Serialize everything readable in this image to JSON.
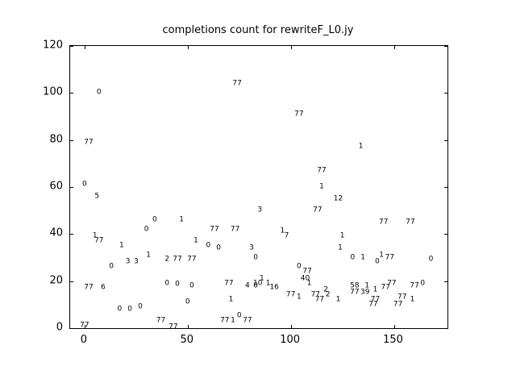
{
  "title": "completions count for rewriteF_L0.jy",
  "chart_data": {
    "type": "scatter",
    "title": "completions count for rewriteF_L0.jy",
    "xlabel": "",
    "ylabel": "",
    "xlim": [
      -7,
      176
    ],
    "ylim": [
      0,
      120
    ],
    "x_ticks": [
      0,
      50,
      100,
      150
    ],
    "y_ticks": [
      0,
      20,
      40,
      60,
      80,
      100,
      120
    ],
    "grid": false,
    "legend": "none",
    "marker_style": "text-label",
    "points": [
      {
        "x": 0,
        "y": 61,
        "t": "0"
      },
      {
        "x": 2,
        "y": 79,
        "t": "77"
      },
      {
        "x": 7,
        "y": 100,
        "t": "0"
      },
      {
        "x": 6,
        "y": 56,
        "t": "5"
      },
      {
        "x": 5,
        "y": 39,
        "t": "1"
      },
      {
        "x": 7,
        "y": 37,
        "t": "77"
      },
      {
        "x": 2,
        "y": 17,
        "t": "77"
      },
      {
        "x": 9,
        "y": 17,
        "t": "6"
      },
      {
        "x": 0,
        "y": 1,
        "t": "77"
      },
      {
        "x": 13,
        "y": 26,
        "t": "0"
      },
      {
        "x": 17,
        "y": 8,
        "t": "0"
      },
      {
        "x": 22,
        "y": 8,
        "t": "0"
      },
      {
        "x": 18,
        "y": 35,
        "t": "1"
      },
      {
        "x": 21,
        "y": 28,
        "t": "3"
      },
      {
        "x": 25,
        "y": 28,
        "t": "3"
      },
      {
        "x": 27,
        "y": 9,
        "t": "0"
      },
      {
        "x": 30,
        "y": 42,
        "t": "0"
      },
      {
        "x": 31,
        "y": 31,
        "t": "1"
      },
      {
        "x": 34,
        "y": 46,
        "t": "0"
      },
      {
        "x": 37,
        "y": 3,
        "t": "77"
      },
      {
        "x": 40,
        "y": 29,
        "t": "2"
      },
      {
        "x": 40,
        "y": 19,
        "t": "0"
      },
      {
        "x": 43,
        "y": 0.5,
        "t": "77"
      },
      {
        "x": 45,
        "y": 29,
        "t": "77"
      },
      {
        "x": 45,
        "y": 18.5,
        "t": "0"
      },
      {
        "x": 47,
        "y": 46,
        "t": "1"
      },
      {
        "x": 50,
        "y": 11,
        "t": "0"
      },
      {
        "x": 52,
        "y": 29,
        "t": "77"
      },
      {
        "x": 52,
        "y": 18,
        "t": "0"
      },
      {
        "x": 54,
        "y": 37,
        "t": "1"
      },
      {
        "x": 60,
        "y": 35,
        "t": "0"
      },
      {
        "x": 63,
        "y": 42,
        "t": "77"
      },
      {
        "x": 65,
        "y": 34,
        "t": "0"
      },
      {
        "x": 68,
        "y": 3,
        "t": "77"
      },
      {
        "x": 70,
        "y": 19,
        "t": "77"
      },
      {
        "x": 71,
        "y": 12,
        "t": "1"
      },
      {
        "x": 72,
        "y": 3,
        "t": "1"
      },
      {
        "x": 73,
        "y": 42,
        "t": "77"
      },
      {
        "x": 74,
        "y": 104,
        "t": "77"
      },
      {
        "x": 75,
        "y": 5,
        "t": "0"
      },
      {
        "x": 79,
        "y": 18,
        "t": "4"
      },
      {
        "x": 79,
        "y": 3,
        "t": "77"
      },
      {
        "x": 81,
        "y": 34,
        "t": "3"
      },
      {
        "x": 83,
        "y": 30,
        "t": "0"
      },
      {
        "x": 83,
        "y": 18,
        "t": "0"
      },
      {
        "x": 85,
        "y": 50,
        "t": "3"
      },
      {
        "x": 84,
        "y": 19,
        "t": "10"
      },
      {
        "x": 86,
        "y": 21,
        "t": "1"
      },
      {
        "x": 89,
        "y": 19,
        "t": "1"
      },
      {
        "x": 92,
        "y": 17,
        "t": "16"
      },
      {
        "x": 96,
        "y": 41,
        "t": "1"
      },
      {
        "x": 98,
        "y": 39,
        "t": "7"
      },
      {
        "x": 100,
        "y": 14,
        "t": "77"
      },
      {
        "x": 104,
        "y": 91,
        "t": "77"
      },
      {
        "x": 104,
        "y": 26,
        "t": "0"
      },
      {
        "x": 104,
        "y": 13,
        "t": "1"
      },
      {
        "x": 107,
        "y": 21,
        "t": "40"
      },
      {
        "x": 108,
        "y": 24,
        "t": "77"
      },
      {
        "x": 109,
        "y": 19,
        "t": "1"
      },
      {
        "x": 112,
        "y": 14,
        "t": "77"
      },
      {
        "x": 113,
        "y": 50,
        "t": "77"
      },
      {
        "x": 114,
        "y": 12,
        "t": "77"
      },
      {
        "x": 115,
        "y": 67,
        "t": "77"
      },
      {
        "x": 115,
        "y": 60,
        "t": "1"
      },
      {
        "x": 117,
        "y": 16,
        "t": "2"
      },
      {
        "x": 118,
        "y": 14,
        "t": "2"
      },
      {
        "x": 123,
        "y": 55,
        "t": "12"
      },
      {
        "x": 123,
        "y": 12,
        "t": "1"
      },
      {
        "x": 124,
        "y": 34,
        "t": "1"
      },
      {
        "x": 125,
        "y": 39,
        "t": "1"
      },
      {
        "x": 130,
        "y": 30,
        "t": "0"
      },
      {
        "x": 131,
        "y": 18,
        "t": "58"
      },
      {
        "x": 131,
        "y": 15,
        "t": "77"
      },
      {
        "x": 134,
        "y": 77,
        "t": "1"
      },
      {
        "x": 135,
        "y": 30,
        "t": "1"
      },
      {
        "x": 136,
        "y": 15,
        "t": "39"
      },
      {
        "x": 137,
        "y": 18,
        "t": "1"
      },
      {
        "x": 140,
        "y": 10,
        "t": "77"
      },
      {
        "x": 141,
        "y": 16,
        "t": "1"
      },
      {
        "x": 141,
        "y": 12,
        "t": "77"
      },
      {
        "x": 142,
        "y": 28,
        "t": "0"
      },
      {
        "x": 144,
        "y": 31,
        "t": "1"
      },
      {
        "x": 145,
        "y": 45,
        "t": "77"
      },
      {
        "x": 146,
        "y": 17,
        "t": "77"
      },
      {
        "x": 148,
        "y": 30,
        "t": "77"
      },
      {
        "x": 149,
        "y": 19,
        "t": "77"
      },
      {
        "x": 152,
        "y": 10,
        "t": "77"
      },
      {
        "x": 154,
        "y": 13,
        "t": "77"
      },
      {
        "x": 158,
        "y": 45,
        "t": "77"
      },
      {
        "x": 159,
        "y": 12,
        "t": "1"
      },
      {
        "x": 160,
        "y": 18,
        "t": "77"
      },
      {
        "x": 164,
        "y": 19,
        "t": "0"
      },
      {
        "x": 168,
        "y": 29,
        "t": "0"
      }
    ]
  }
}
